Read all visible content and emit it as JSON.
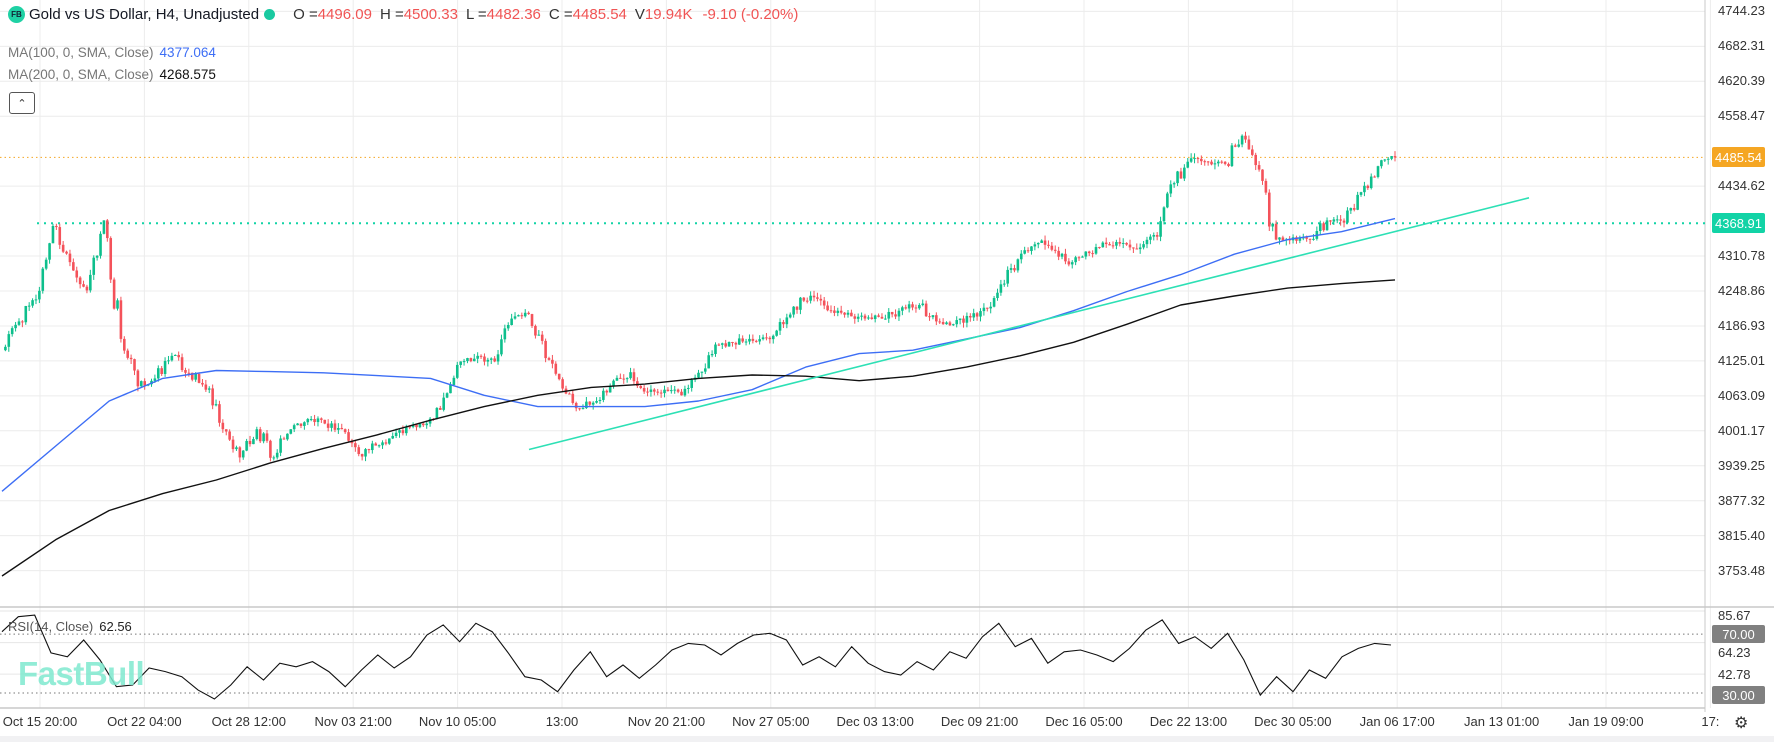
{
  "header": {
    "logo": "FB",
    "title": "Gold vs US Dollar, H4, Unadjusted",
    "status_dot_color": "#19c9a0",
    "o_label": "O =",
    "o": "4496.09",
    "h_label": "H =",
    "h": "4500.33",
    "l_label": "L =",
    "l": "4482.36",
    "c_label": "C =",
    "c": "4485.54",
    "v_label": "V",
    "v": "19.94K",
    "change": "-9.10 (-0.20%)"
  },
  "indicators": {
    "ma100": {
      "label": "MA(100, 0, SMA, Close)",
      "value": "4377.064",
      "color": "#3d6ef5"
    },
    "ma200": {
      "label": "MA(200, 0, SMA, Close)",
      "value": "4268.575",
      "color": "#111111"
    },
    "collapse_icon": "chevron-up-icon",
    "rsi": {
      "label": "RSI(14, Close)",
      "value": "62.56"
    }
  },
  "watermark": "FastBull",
  "price_axis": {
    "labels": [
      "4744.23",
      "4682.31",
      "4620.39",
      "4558.47",
      "4434.62",
      "4310.78",
      "4248.86",
      "4186.93",
      "4125.01",
      "4063.09",
      "4001.17",
      "3939.25",
      "3877.32",
      "3815.40",
      "3753.48"
    ],
    "current_price_tag": {
      "value": "4485.54",
      "color": "#f5a623"
    },
    "level_tag": {
      "value": "4368.91",
      "color": "#12d3a6"
    }
  },
  "rsi_axis": {
    "labels": [
      "85.67",
      "64.23",
      "42.78"
    ],
    "upper_tag": "70.00",
    "lower_tag": "30.00",
    "tag_color": "#808080"
  },
  "time_axis": {
    "labels": [
      "Oct 15 20:00",
      "Oct 22 04:00",
      "Oct 28 12:00",
      "Nov 03 21:00",
      "Nov 10 05:00",
      "13:00",
      "Nov 20 21:00",
      "Nov 27 05:00",
      "Dec 03 13:00",
      "Dec 09 21:00",
      "Dec 16 05:00",
      "Dec 22 13:00",
      "Dec 30 05:00",
      "Jan 06 17:00",
      "Jan 13 01:00",
      "Jan 19 09:00",
      "17:"
    ],
    "settings_icon": "gear-icon"
  },
  "chart_data": {
    "type": "candlestick",
    "symbol": "Gold vs US Dollar",
    "timeframe": "H4",
    "ylim": [
      3722.52,
      4744.23
    ],
    "colors": {
      "up": "#0dbf8c",
      "down": "#f4525a",
      "ma100": "#3d6ef5",
      "ma200": "#111111",
      "trendline": "#2de0b5",
      "level": "#12d3a6",
      "current": "#f5a623"
    },
    "grid": true,
    "close_series": [
      4144,
      4195,
      4234,
      4364,
      4300,
      4250,
      4374,
      4164,
      4080,
      4094,
      4134,
      4104,
      4074,
      4004,
      3954,
      4004,
      3954,
      4004,
      4022,
      4014,
      4004,
      3960,
      3975,
      3992,
      4008,
      4014,
      4060,
      4124,
      4134,
      4124,
      4200,
      4208,
      4130,
      4076,
      4040,
      4054,
      4090,
      4105,
      4070,
      4074,
      4064,
      4104,
      4154,
      4157,
      4164,
      4166,
      4190,
      4237,
      4235,
      4210,
      4204,
      4202,
      4200,
      4220,
      4224,
      4195,
      4190,
      4202,
      4218,
      4262,
      4315,
      4334,
      4320,
      4300,
      4316,
      4332,
      4334,
      4326,
      4345,
      4440,
      4484,
      4478,
      4474,
      4524,
      4464,
      4340,
      4344,
      4340,
      4374,
      4370,
      4424,
      4470,
      4485.54
    ],
    "ma100_series": [
      3894,
      3974,
      4054,
      4094,
      4108,
      4106,
      4104,
      4099,
      4094,
      4064,
      4044,
      4044,
      4044,
      4054,
      4074,
      4114,
      4138,
      4144,
      4164,
      4184,
      4214,
      4248,
      4278,
      4314,
      4340,
      4354,
      4377.06
    ],
    "ma200_series": [
      3744,
      3808,
      3860,
      3890,
      3914,
      3944,
      3970,
      3994,
      4020,
      4044,
      4064,
      4078,
      4084,
      4094,
      4100,
      4098,
      4090,
      4098,
      4114,
      4134,
      4158,
      4190,
      4224,
      4240,
      4254,
      4262,
      4268.58
    ],
    "trendline": {
      "start_price": 3968,
      "end_price": 4414
    },
    "horizontal_level": 4368.91,
    "current_price": 4485.54,
    "rsi": {
      "period": 14,
      "ylim": [
        22,
        88
      ],
      "levels": [
        70,
        30
      ],
      "values": [
        71.6,
        81.8,
        82.9,
        57.2,
        54.6,
        66,
        52.4,
        34.3,
        35.4,
        47,
        44.5,
        41.1,
        32,
        25.9,
        35.4,
        47.8,
        38.8,
        50.2,
        47.8,
        51.3,
        44.5,
        34.3,
        45.6,
        55.8,
        47,
        54.6,
        69.4,
        76.2,
        64.8,
        77.3,
        71.6,
        56.9,
        41.1,
        38.8,
        30.9,
        45.6,
        58,
        41.1,
        49,
        40,
        49,
        59.2,
        63.7,
        62.6,
        55.8,
        63.7,
        69.4,
        70.5,
        66,
        49,
        54.6,
        47.8,
        61.4,
        50.2,
        44.5,
        42.2,
        51.3,
        45.6,
        58,
        53.6,
        68.2,
        77.3,
        61.4,
        67.1,
        50.2,
        58,
        59.2,
        55.8,
        51.3,
        60.3,
        72.8,
        79.6,
        63.7,
        68.2,
        60.3,
        70.5,
        52.4,
        28.6,
        41.1,
        30.9,
        45.6,
        40,
        54.6,
        60.3,
        63.7,
        62.56
      ]
    }
  }
}
